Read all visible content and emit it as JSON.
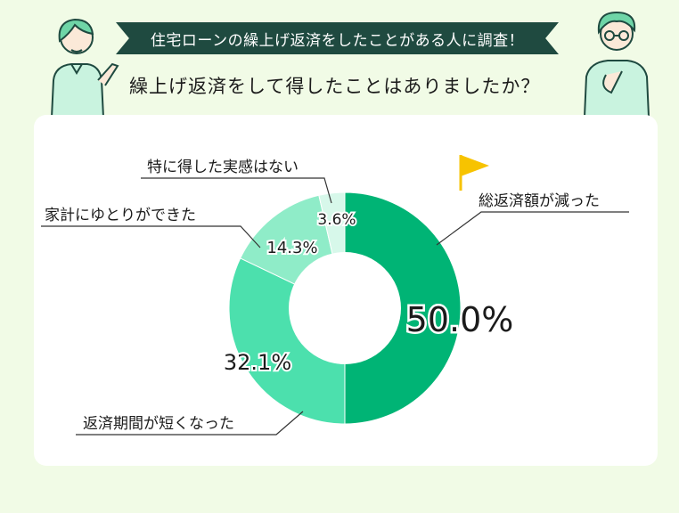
{
  "header": {
    "banner": "住宅ローンの繰上げ返済をしたことがある人に調査！",
    "question": "繰上げ返済をして得したことはありましたか？"
  },
  "colors": {
    "background": "#f1fbe6",
    "banner": "#1f4a40",
    "flag": "#f7c300"
  },
  "chart_data": {
    "type": "pie",
    "donut": true,
    "slices": [
      {
        "label": "総返済額が減った",
        "value": 50.0,
        "display": "50.0%",
        "color": "#00b475"
      },
      {
        "label": "返済期間が短くなった",
        "value": 32.1,
        "display": "32.1%",
        "color": "#4ce0ad"
      },
      {
        "label": "家計にゆとりができた",
        "value": 14.3,
        "display": "14.3%",
        "color": "#8fecc8"
      },
      {
        "label": "特に得した実感はない",
        "value": 3.6,
        "display": "3.6%",
        "color": "#d7f8ea"
      }
    ]
  }
}
